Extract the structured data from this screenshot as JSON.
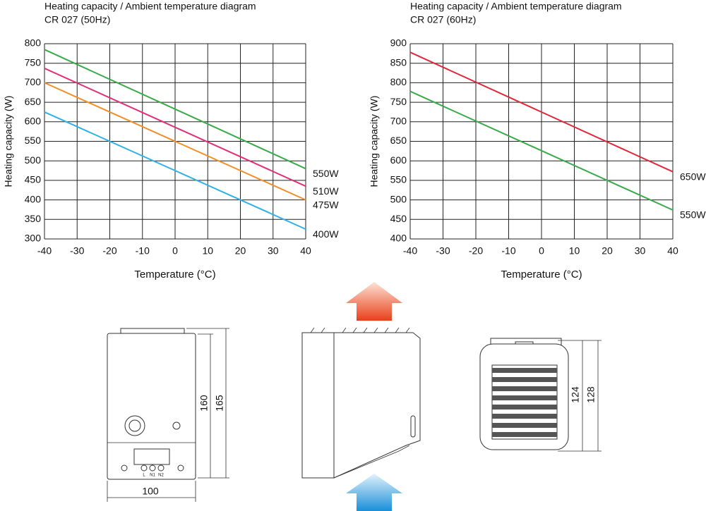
{
  "chart_data": [
    {
      "type": "line",
      "title": "Heating capacity / Ambient temperature diagram",
      "subtitle": "CR 027 (50Hz)",
      "x_label": "Temperature (°C)",
      "y_label": "Heating capacity (W)",
      "x": [
        -40,
        40
      ],
      "xlim": [
        -40,
        40
      ],
      "xticks": [
        -40,
        -30,
        -20,
        -10,
        0,
        10,
        20,
        30,
        40
      ],
      "ylim": [
        300,
        800
      ],
      "yticks": [
        300,
        350,
        400,
        450,
        500,
        550,
        600,
        650,
        700,
        750,
        800
      ],
      "grid": true,
      "series": [
        {
          "name": "550W",
          "color": "#3aaa4a",
          "values": [
            785,
            480
          ]
        },
        {
          "name": "510W",
          "color": "#e0307a",
          "values": [
            737,
            435
          ]
        },
        {
          "name": "475W",
          "color": "#f0902a",
          "values": [
            700,
            400
          ]
        },
        {
          "name": "400W",
          "color": "#2eb2e6",
          "values": [
            625,
            325
          ]
        }
      ]
    },
    {
      "type": "line",
      "title": "Heating capacity / Ambient temperature diagram",
      "subtitle": "CR 027 (60Hz)",
      "x_label": "Temperature (°C)",
      "y_label": "Heating capacity (W)",
      "x": [
        -40,
        40
      ],
      "xlim": [
        -40,
        40
      ],
      "xticks": [
        -40,
        -30,
        -20,
        -10,
        0,
        10,
        20,
        30,
        40
      ],
      "ylim": [
        400,
        900
      ],
      "yticks": [
        400,
        450,
        500,
        550,
        600,
        650,
        700,
        750,
        800,
        850,
        900
      ],
      "grid": true,
      "series": [
        {
          "name": "650W",
          "color": "#e0283a",
          "values": [
            878,
            572
          ]
        },
        {
          "name": "550W",
          "color": "#3aaa4a",
          "values": [
            778,
            474
          ]
        }
      ]
    }
  ],
  "drawings": {
    "dimensions": [
      160,
      165,
      100,
      124,
      128
    ],
    "terminals": [
      "L",
      "N1",
      "N2"
    ]
  }
}
